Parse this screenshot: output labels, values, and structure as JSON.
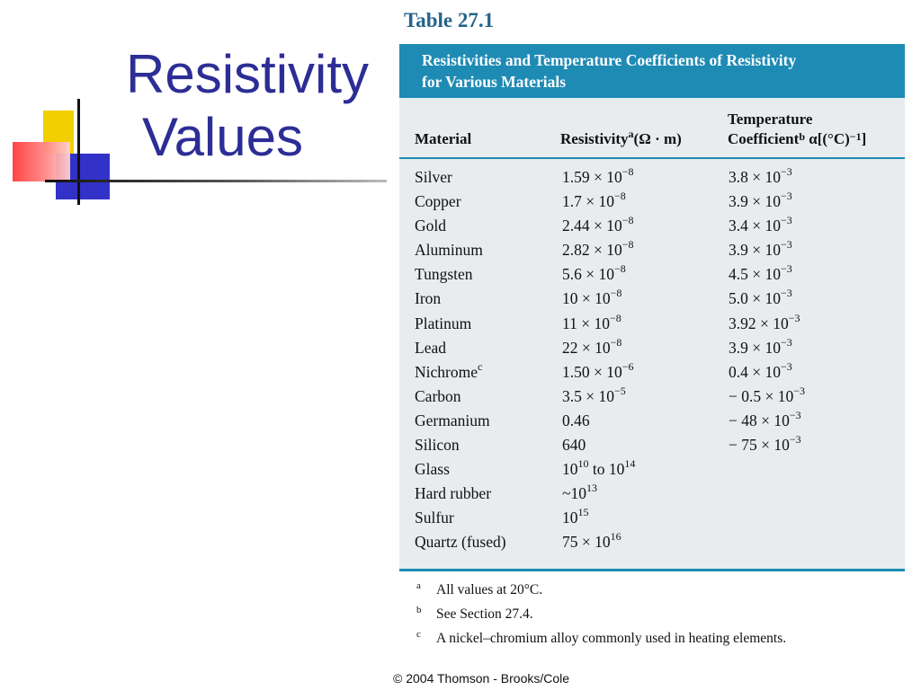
{
  "slide": {
    "title_line1": "Resistivity",
    "title_line2": "Values",
    "copyright": "© 2004 Thomson - Brooks/Cole"
  },
  "table": {
    "caption": "Table 27.1",
    "heading_line1": "Resistivities and Temperature Coefficients of Resistivity",
    "heading_line2": "for Various Materials",
    "columns": {
      "material": "Material",
      "resistivity": "Resistivity",
      "resistivity_sup": "a",
      "resistivity_unit": "(Ω · m)",
      "temp_line1": "Temperature",
      "temp_line2": "Coefficient",
      "temp_sup": "b",
      "temp_symbol": " α[(°C)",
      "temp_exp": "−1",
      "temp_close": "]"
    },
    "rows": [
      {
        "material": "Silver",
        "resistivity": "1.59 × 10",
        "res_exp": "−8",
        "temp": "3.8 × 10",
        "temp_exp": "−3"
      },
      {
        "material": "Copper",
        "resistivity": "1.7 × 10",
        "res_exp": "−8",
        "temp": "3.9 × 10",
        "temp_exp": "−3"
      },
      {
        "material": "Gold",
        "resistivity": "2.44 × 10",
        "res_exp": "−8",
        "temp": "3.4 × 10",
        "temp_exp": "−3"
      },
      {
        "material": "Aluminum",
        "resistivity": "2.82 × 10",
        "res_exp": "−8",
        "temp": "3.9 × 10",
        "temp_exp": "−3"
      },
      {
        "material": "Tungsten",
        "resistivity": "5.6 × 10",
        "res_exp": "−8",
        "temp": "4.5 × 10",
        "temp_exp": "−3"
      },
      {
        "material": "Iron",
        "resistivity": "10 × 10",
        "res_exp": "−8",
        "temp": "5.0 × 10",
        "temp_exp": "−3"
      },
      {
        "material": "Platinum",
        "resistivity": "11 × 10",
        "res_exp": "−8",
        "temp": "3.92 × 10",
        "temp_exp": "−3"
      },
      {
        "material": "Lead",
        "resistivity": "22 × 10",
        "res_exp": "−8",
        "temp": "3.9 × 10",
        "temp_exp": "−3"
      },
      {
        "material": "Nichrome",
        "material_sup": "c",
        "resistivity": "1.50 × 10",
        "res_exp": "−6",
        "temp": "0.4 × 10",
        "temp_exp": "−3"
      },
      {
        "material": "Carbon",
        "resistivity": "3.5 × 10",
        "res_exp": "−5",
        "temp": "− 0.5 × 10",
        "temp_exp": "−3"
      },
      {
        "material": "Germanium",
        "resistivity": "0.46",
        "res_exp": "",
        "temp": "− 48 × 10",
        "temp_exp": "−3"
      },
      {
        "material": "Silicon",
        "resistivity": "640",
        "res_exp": "",
        "temp": "− 75 × 10",
        "temp_exp": "−3"
      },
      {
        "material": "Glass",
        "resistivity": "10",
        "res_exp": "10",
        "res_mid": " to 10",
        "res_exp2": "14",
        "temp": "",
        "temp_exp": ""
      },
      {
        "material": "Hard rubber",
        "resistivity": "~10",
        "res_exp": "13",
        "temp": "",
        "temp_exp": ""
      },
      {
        "material": "Sulfur",
        "resistivity": "10",
        "res_exp": "15",
        "temp": "",
        "temp_exp": ""
      },
      {
        "material": "Quartz (fused)",
        "resistivity": "75 × 10",
        "res_exp": "16",
        "temp": "",
        "temp_exp": ""
      }
    ],
    "footnotes": [
      {
        "mark": "a",
        "text": "All values at 20°C."
      },
      {
        "mark": "b",
        "text": "See Section 27.4."
      },
      {
        "mark": "c",
        "text": "A nickel–chromium alloy commonly used in heating elements."
      }
    ]
  }
}
